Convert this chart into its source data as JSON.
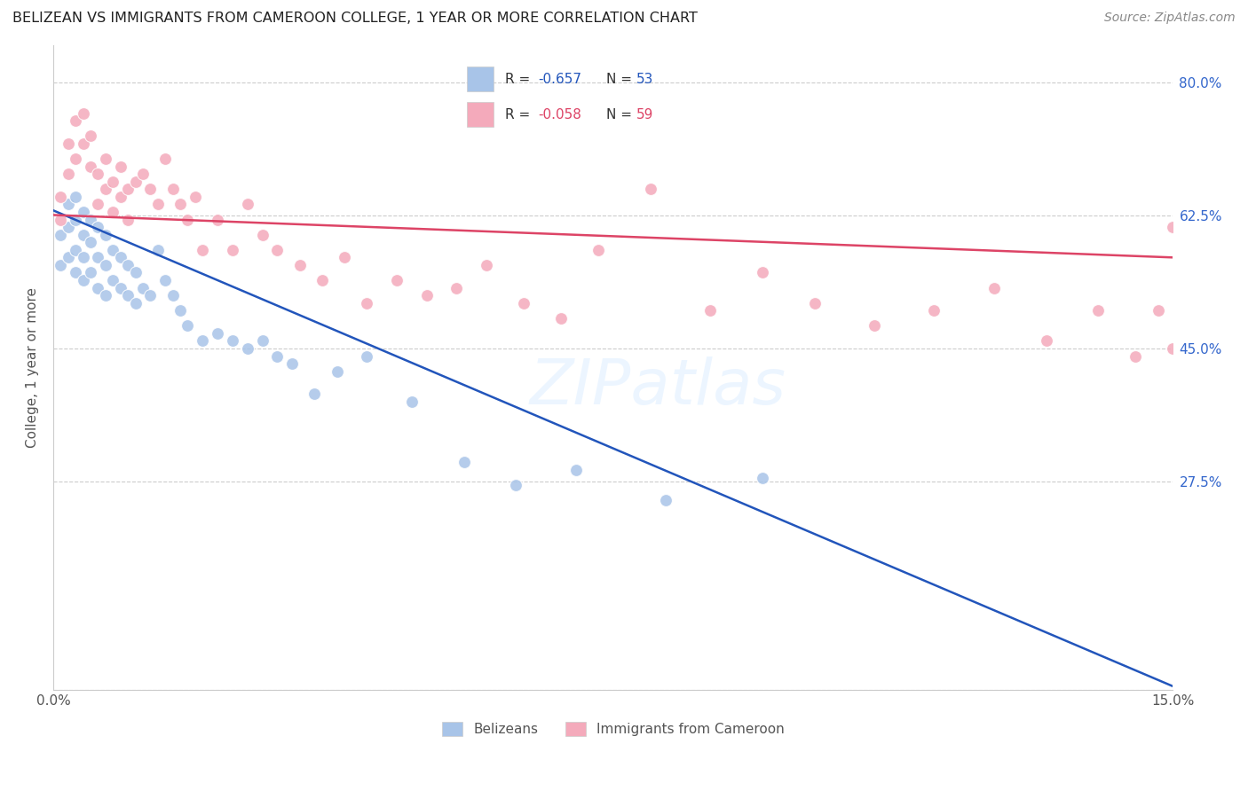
{
  "title": "BELIZEAN VS IMMIGRANTS FROM CAMEROON COLLEGE, 1 YEAR OR MORE CORRELATION CHART",
  "source": "Source: ZipAtlas.com",
  "ylabel": "College, 1 year or more",
  "xlim": [
    0.0,
    0.15
  ],
  "ylim": [
    0.0,
    0.85
  ],
  "yticks": [
    0.0,
    0.275,
    0.45,
    0.625,
    0.8
  ],
  "ytick_labels": [
    "",
    "27.5%",
    "45.0%",
    "62.5%",
    "80.0%"
  ],
  "xticks": [
    0.0,
    0.025,
    0.05,
    0.075,
    0.1,
    0.125,
    0.15
  ],
  "xtick_labels": [
    "0.0%",
    "",
    "",
    "",
    "",
    "",
    "15.0%"
  ],
  "blue_color": "#a8c4e8",
  "pink_color": "#f4aabb",
  "blue_line_color": "#2255bb",
  "pink_line_color": "#dd4466",
  "right_axis_color": "#3366cc",
  "label_blue": "Belizeans",
  "label_pink": "Immigrants from Cameroon",
  "watermark": "ZIPatlas",
  "blue_points_x": [
    0.001,
    0.001,
    0.002,
    0.002,
    0.002,
    0.003,
    0.003,
    0.003,
    0.003,
    0.004,
    0.004,
    0.004,
    0.004,
    0.005,
    0.005,
    0.005,
    0.006,
    0.006,
    0.006,
    0.007,
    0.007,
    0.007,
    0.008,
    0.008,
    0.009,
    0.009,
    0.01,
    0.01,
    0.011,
    0.011,
    0.012,
    0.013,
    0.014,
    0.015,
    0.016,
    0.017,
    0.018,
    0.02,
    0.022,
    0.024,
    0.026,
    0.028,
    0.03,
    0.032,
    0.035,
    0.038,
    0.042,
    0.048,
    0.055,
    0.062,
    0.07,
    0.082,
    0.095
  ],
  "blue_points_y": [
    0.6,
    0.56,
    0.64,
    0.61,
    0.57,
    0.65,
    0.62,
    0.58,
    0.55,
    0.63,
    0.6,
    0.57,
    0.54,
    0.62,
    0.59,
    0.55,
    0.61,
    0.57,
    0.53,
    0.6,
    0.56,
    0.52,
    0.58,
    0.54,
    0.57,
    0.53,
    0.56,
    0.52,
    0.55,
    0.51,
    0.53,
    0.52,
    0.58,
    0.54,
    0.52,
    0.5,
    0.48,
    0.46,
    0.47,
    0.46,
    0.45,
    0.46,
    0.44,
    0.43,
    0.39,
    0.42,
    0.44,
    0.38,
    0.3,
    0.27,
    0.29,
    0.25,
    0.28
  ],
  "pink_points_x": [
    0.001,
    0.001,
    0.002,
    0.002,
    0.003,
    0.003,
    0.004,
    0.004,
    0.005,
    0.005,
    0.006,
    0.006,
    0.007,
    0.007,
    0.008,
    0.008,
    0.009,
    0.009,
    0.01,
    0.01,
    0.011,
    0.012,
    0.013,
    0.014,
    0.015,
    0.016,
    0.017,
    0.018,
    0.019,
    0.02,
    0.022,
    0.024,
    0.026,
    0.028,
    0.03,
    0.033,
    0.036,
    0.039,
    0.042,
    0.046,
    0.05,
    0.054,
    0.058,
    0.063,
    0.068,
    0.073,
    0.08,
    0.088,
    0.095,
    0.102,
    0.11,
    0.118,
    0.126,
    0.133,
    0.14,
    0.145,
    0.148,
    0.15,
    0.15
  ],
  "pink_points_y": [
    0.65,
    0.62,
    0.72,
    0.68,
    0.75,
    0.7,
    0.76,
    0.72,
    0.73,
    0.69,
    0.68,
    0.64,
    0.7,
    0.66,
    0.67,
    0.63,
    0.69,
    0.65,
    0.66,
    0.62,
    0.67,
    0.68,
    0.66,
    0.64,
    0.7,
    0.66,
    0.64,
    0.62,
    0.65,
    0.58,
    0.62,
    0.58,
    0.64,
    0.6,
    0.58,
    0.56,
    0.54,
    0.57,
    0.51,
    0.54,
    0.52,
    0.53,
    0.56,
    0.51,
    0.49,
    0.58,
    0.66,
    0.5,
    0.55,
    0.51,
    0.48,
    0.5,
    0.53,
    0.46,
    0.5,
    0.44,
    0.5,
    0.45,
    0.61
  ],
  "blue_trend_x": [
    0.0,
    0.15
  ],
  "blue_trend_y": [
    0.632,
    0.005
  ],
  "pink_trend_x": [
    0.0,
    0.15
  ],
  "pink_trend_y": [
    0.626,
    0.57
  ]
}
